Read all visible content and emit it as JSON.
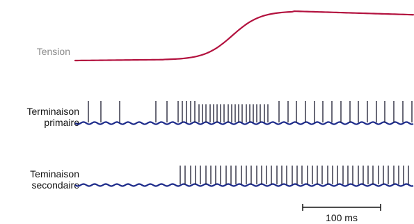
{
  "labels": {
    "tension": "Tension",
    "primary_line1": "Terminaison",
    "primary_line2": "primaire",
    "secondary_line1": "Teminaison",
    "secondary_line2": "secondaire"
  },
  "scale_bar": {
    "label": "100 ms"
  },
  "colors": {
    "tension_trace": "#b3123f",
    "tension_label": "#8a8a8a",
    "fiber_trace": "#1c2a8a",
    "spike": "#1a1a2e",
    "text": "#111111"
  }
}
